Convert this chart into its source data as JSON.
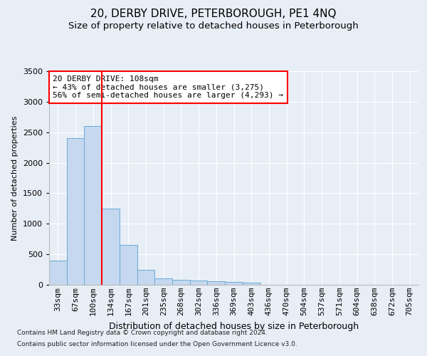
{
  "title": "20, DERBY DRIVE, PETERBOROUGH, PE1 4NQ",
  "subtitle": "Size of property relative to detached houses in Peterborough",
  "xlabel": "Distribution of detached houses by size in Peterborough",
  "ylabel": "Number of detached properties",
  "footnote1": "Contains HM Land Registry data © Crown copyright and database right 2024.",
  "footnote2": "Contains public sector information licensed under the Open Government Licence v3.0.",
  "categories": [
    "33sqm",
    "67sqm",
    "100sqm",
    "134sqm",
    "167sqm",
    "201sqm",
    "235sqm",
    "268sqm",
    "302sqm",
    "336sqm",
    "369sqm",
    "403sqm",
    "436sqm",
    "470sqm",
    "504sqm",
    "537sqm",
    "571sqm",
    "604sqm",
    "638sqm",
    "672sqm",
    "705sqm"
  ],
  "values": [
    400,
    2400,
    2600,
    1250,
    650,
    250,
    110,
    80,
    75,
    55,
    50,
    30,
    0,
    0,
    0,
    0,
    0,
    0,
    0,
    0,
    0
  ],
  "bar_color": "#c5d8ef",
  "bar_edge_color": "#6aaad4",
  "vline_x_index": 2,
  "annotation_line1": "20 DERBY DRIVE: 108sqm",
  "annotation_line2": "← 43% of detached houses are smaller (3,275)",
  "annotation_line3": "56% of semi-detached houses are larger (4,293) →",
  "annotation_box_color": "white",
  "annotation_box_edge_color": "red",
  "vline_color": "red",
  "ylim": [
    0,
    3500
  ],
  "yticks": [
    0,
    500,
    1000,
    1500,
    2000,
    2500,
    3000,
    3500
  ],
  "bg_color": "#e8eef6",
  "title_fontsize": 11,
  "subtitle_fontsize": 9.5,
  "ylabel_fontsize": 8,
  "xlabel_fontsize": 9,
  "tick_fontsize": 8
}
